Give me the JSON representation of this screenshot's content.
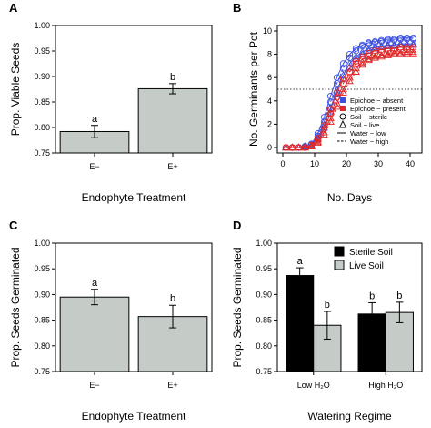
{
  "chart_data": [
    {
      "panel": "A",
      "type": "bar",
      "categories": [
        "E−",
        "E+"
      ],
      "values": [
        0.792,
        0.876
      ],
      "errors": [
        0.012,
        0.01
      ],
      "sig_letters": [
        "a",
        "b"
      ],
      "xlabel": "Endophyte Treatment",
      "ylabel": "Prop. Viable Seeds",
      "ylim": [
        0.75,
        1.0
      ],
      "yticks": [
        "0.75",
        "0.80",
        "0.85",
        "0.90",
        "0.95",
        "1.00"
      ],
      "colors": {
        "bar": "#c5ccc8"
      }
    },
    {
      "panel": "B",
      "type": "scatter",
      "xlabel": "No. Days",
      "ylabel": "No. Germinants per Pot",
      "xlim": [
        0,
        42
      ],
      "ylim": [
        0,
        10
      ],
      "xticks": [
        "0",
        "10",
        "20",
        "30",
        "40"
      ],
      "yticks": [
        "0",
        "2",
        "4",
        "6",
        "8",
        "10"
      ],
      "reference_line_y": 5,
      "grid": false,
      "legend": [
        "Epichoe − absent",
        "Epichoe − present",
        "Soil − sterile",
        "Soil − live",
        "Water − low",
        "Water − high"
      ],
      "legend_placement": "bottom-right",
      "colors": {
        "absent": "#3b4fe0",
        "present": "#e02a2a"
      },
      "series": [
        {
          "endophyte": "absent",
          "soil": "sterile",
          "water": "low",
          "x": [
            1,
            3,
            5,
            7,
            9,
            11,
            13,
            15,
            17,
            19,
            21,
            23,
            25,
            27,
            29,
            31,
            33,
            35,
            37,
            39,
            41
          ],
          "y": [
            0,
            0,
            0,
            0.1,
            0.3,
            1.2,
            2.6,
            4.4,
            6.0,
            7.2,
            8.0,
            8.5,
            8.8,
            9.0,
            9.1,
            9.2,
            9.3,
            9.3,
            9.4,
            9.4,
            9.4
          ]
        },
        {
          "endophyte": "absent",
          "soil": "sterile",
          "water": "high",
          "x": [
            1,
            3,
            5,
            7,
            9,
            11,
            13,
            15,
            17,
            19,
            21,
            23,
            25,
            27,
            29,
            31,
            33,
            35,
            37,
            39,
            41
          ],
          "y": [
            0,
            0,
            0,
            0.1,
            0.3,
            1.0,
            2.2,
            3.9,
            5.5,
            6.8,
            7.7,
            8.3,
            8.7,
            8.9,
            9.0,
            9.1,
            9.2,
            9.2,
            9.3,
            9.3,
            9.3
          ]
        },
        {
          "endophyte": "absent",
          "soil": "live",
          "water": "low",
          "x": [
            1,
            3,
            5,
            7,
            9,
            11,
            13,
            15,
            17,
            19,
            21,
            23,
            25,
            27,
            29,
            31,
            33,
            35,
            37,
            39,
            41
          ],
          "y": [
            0,
            0,
            0,
            0.1,
            0.2,
            0.8,
            1.9,
            3.4,
            4.9,
            6.2,
            7.2,
            7.8,
            8.2,
            8.5,
            8.6,
            8.7,
            8.8,
            8.8,
            8.9,
            8.9,
            8.9
          ]
        },
        {
          "endophyte": "absent",
          "soil": "live",
          "water": "high",
          "x": [
            1,
            3,
            5,
            7,
            9,
            11,
            13,
            15,
            17,
            19,
            21,
            23,
            25,
            27,
            29,
            31,
            33,
            35,
            37,
            39,
            41
          ],
          "y": [
            0,
            0,
            0,
            0,
            0.2,
            0.7,
            1.7,
            3.1,
            4.6,
            5.9,
            6.9,
            7.6,
            8.0,
            8.3,
            8.5,
            8.6,
            8.7,
            8.7,
            8.8,
            8.8,
            8.8
          ]
        },
        {
          "endophyte": "present",
          "soil": "sterile",
          "water": "low",
          "x": [
            1,
            3,
            5,
            7,
            9,
            11,
            13,
            15,
            17,
            19,
            21,
            23,
            25,
            27,
            29,
            31,
            33,
            35,
            37,
            39,
            41
          ],
          "y": [
            0,
            0,
            0,
            0,
            0.2,
            0.8,
            1.9,
            3.3,
            4.7,
            5.9,
            6.8,
            7.4,
            7.8,
            8.1,
            8.3,
            8.4,
            8.5,
            8.5,
            8.6,
            8.6,
            8.6
          ]
        },
        {
          "endophyte": "present",
          "soil": "sterile",
          "water": "high",
          "x": [
            1,
            3,
            5,
            7,
            9,
            11,
            13,
            15,
            17,
            19,
            21,
            23,
            25,
            27,
            29,
            31,
            33,
            35,
            37,
            39,
            41
          ],
          "y": [
            0,
            0,
            0,
            0,
            0.2,
            0.6,
            1.6,
            2.9,
            4.3,
            5.5,
            6.5,
            7.2,
            7.6,
            7.9,
            8.1,
            8.2,
            8.3,
            8.3,
            8.4,
            8.4,
            8.4
          ]
        },
        {
          "endophyte": "present",
          "soil": "live",
          "water": "low",
          "x": [
            1,
            3,
            5,
            7,
            9,
            11,
            13,
            15,
            17,
            19,
            21,
            23,
            25,
            27,
            29,
            31,
            33,
            35,
            37,
            39,
            41
          ],
          "y": [
            0,
            0,
            0,
            0,
            0.1,
            0.5,
            1.3,
            2.5,
            3.8,
            5.0,
            6.0,
            6.8,
            7.3,
            7.6,
            7.8,
            7.9,
            8.0,
            8.1,
            8.1,
            8.2,
            8.2
          ]
        },
        {
          "endophyte": "present",
          "soil": "live",
          "water": "high",
          "x": [
            1,
            3,
            5,
            7,
            9,
            11,
            13,
            15,
            17,
            19,
            21,
            23,
            25,
            27,
            29,
            31,
            33,
            35,
            37,
            39,
            41
          ],
          "y": [
            0,
            0,
            0,
            0,
            0.1,
            0.4,
            1.1,
            2.2,
            3.5,
            4.7,
            5.7,
            6.5,
            7.1,
            7.5,
            7.7,
            7.8,
            7.9,
            8.0,
            8.0,
            8.0,
            8.0
          ]
        }
      ]
    },
    {
      "panel": "C",
      "type": "bar",
      "categories": [
        "E−",
        "E+"
      ],
      "values": [
        0.895,
        0.857
      ],
      "errors": [
        0.015,
        0.022
      ],
      "sig_letters": [
        "a",
        "b"
      ],
      "xlabel": "Endophyte Treatment",
      "ylabel": "Prop. Seeds Germinated",
      "ylim": [
        0.75,
        1.0
      ],
      "yticks": [
        "0.75",
        "0.80",
        "0.85",
        "0.90",
        "0.95",
        "1.00"
      ],
      "colors": {
        "bar": "#c5ccc8"
      }
    },
    {
      "panel": "D",
      "type": "bar",
      "categories": [
        "Low H₂O",
        "High H₂O"
      ],
      "series": [
        {
          "name": "Sterile Soil",
          "values": [
            0.937,
            0.862
          ],
          "errors": [
            0.015,
            0.022
          ],
          "sig_letters": [
            "a",
            "b"
          ]
        },
        {
          "name": "Live Soil",
          "values": [
            0.84,
            0.865
          ],
          "errors": [
            0.027,
            0.02
          ],
          "sig_letters": [
            "b",
            "b"
          ]
        }
      ],
      "xlabel": "Watering Regime",
      "ylabel": "Prop. Seeds Germinated",
      "ylim": [
        0.75,
        1.0
      ],
      "yticks": [
        "0.75",
        "0.80",
        "0.85",
        "0.90",
        "0.95",
        "1.00"
      ],
      "legend_placement": "top-right",
      "colors": {
        "sterile": "#000000",
        "live": "#c5ccc8"
      }
    }
  ],
  "panel_letters": [
    "A",
    "B",
    "C",
    "D"
  ]
}
